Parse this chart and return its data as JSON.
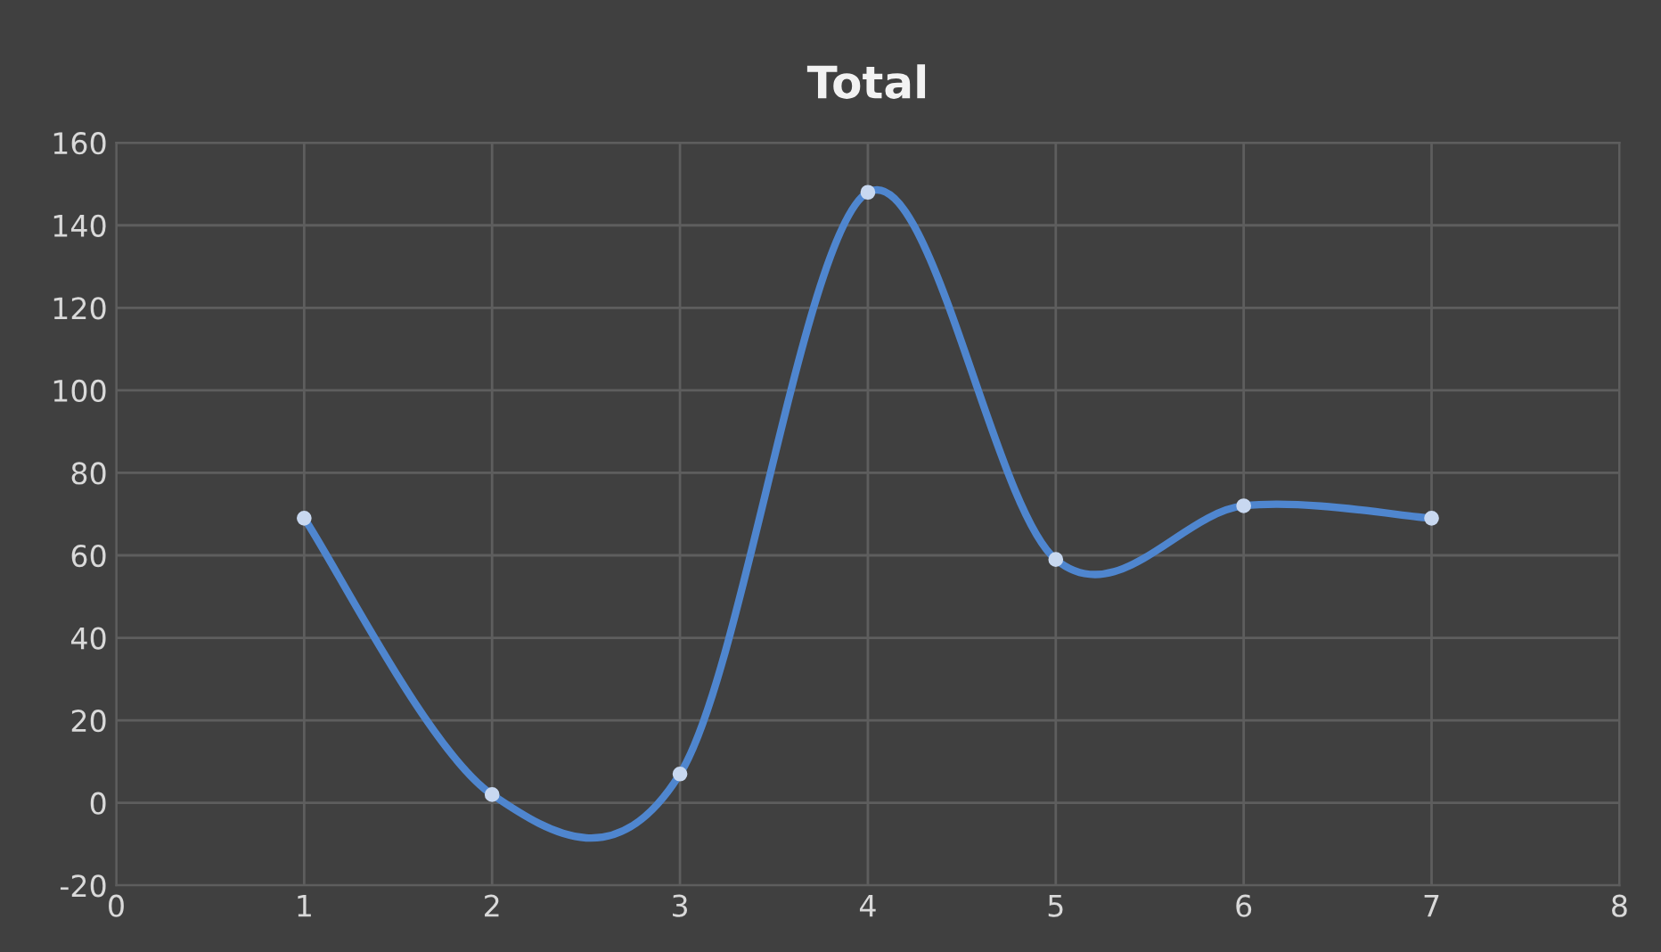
{
  "chart_data": {
    "type": "line",
    "title": "Total",
    "x": [
      1,
      2,
      3,
      4,
      5,
      6,
      7
    ],
    "series": [
      {
        "color": "#4f86cf",
        "values": [
          69,
          2,
          7,
          148,
          59,
          72,
          69
        ]
      }
    ],
    "xlim": [
      0,
      8
    ],
    "xticks": [
      0,
      1,
      2,
      3,
      4,
      5,
      6,
      7,
      8
    ],
    "ylim": [
      -20,
      160
    ],
    "yticks": [
      -20,
      0,
      20,
      40,
      60,
      80,
      100,
      120,
      140,
      160
    ],
    "grid": true,
    "marker": "circle",
    "line_style": "solid"
  }
}
